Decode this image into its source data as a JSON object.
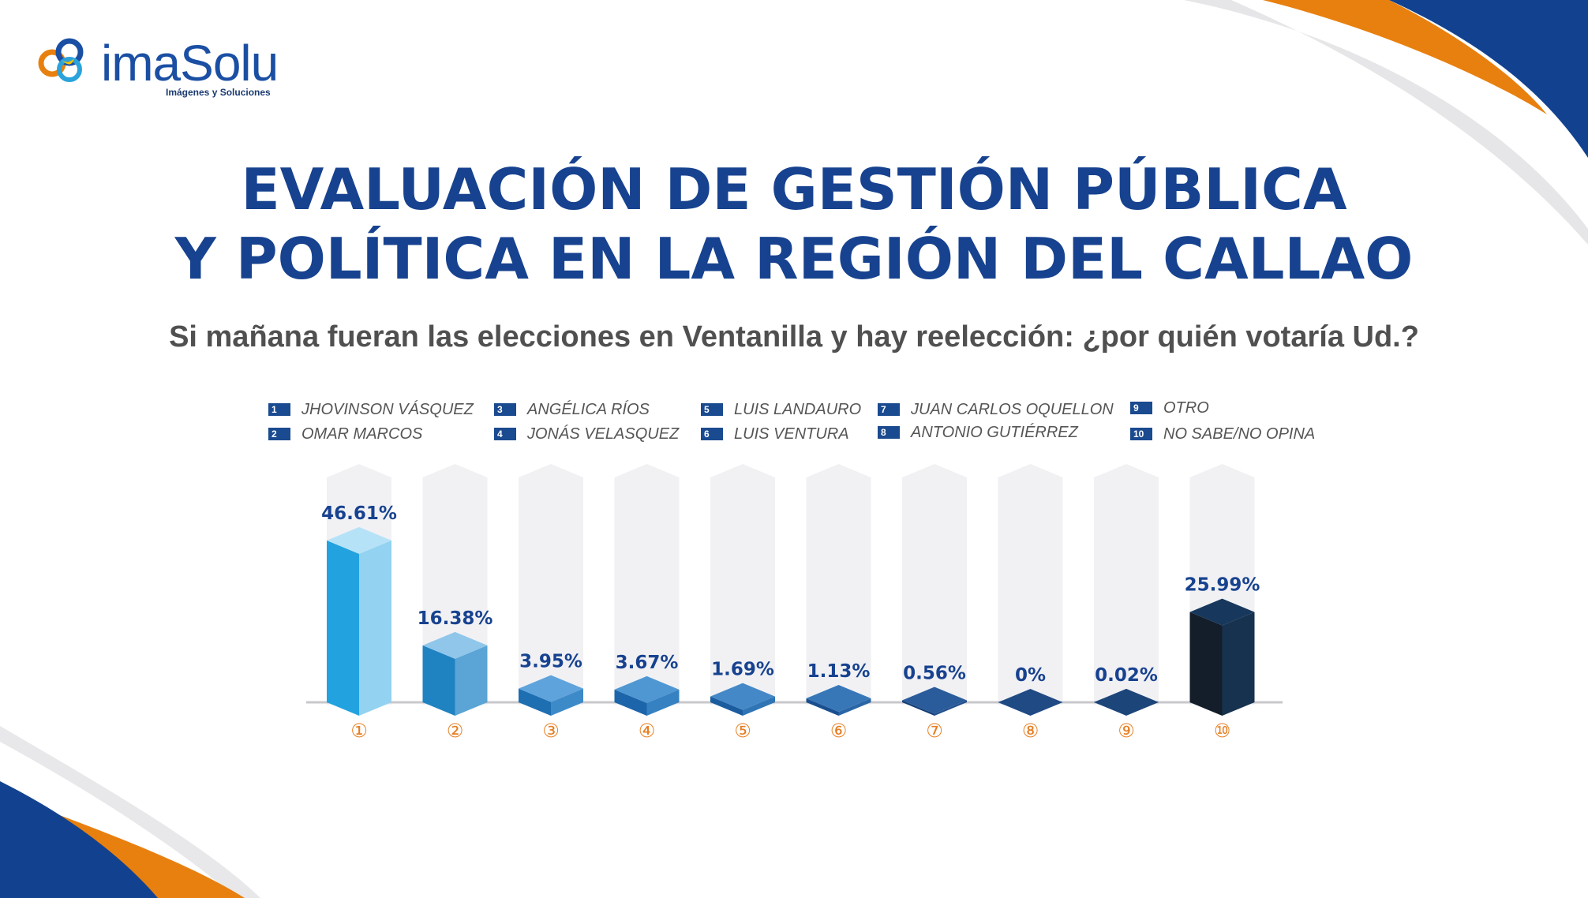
{
  "brand": {
    "name": "imaSolu",
    "tagline": "Imágenes y Soluciones",
    "logo_icon": "imasolu-logo-icon"
  },
  "title_line1": "EVALUACIÓN DE GESTIÓN PÚBLICA",
  "title_line2": "Y POLÍTICA EN LA REGIÓN DEL CALLAO",
  "subtitle": "Si mañana fueran las elecciones en Ventanilla y hay reelección: ¿por quién votaría Ud.?",
  "colors": {
    "title": "#17428f",
    "subtitle": "#505050",
    "accent_orange": "#e8800f",
    "accent_blue": "#12428f",
    "value_label": "#17428f",
    "number_circle": "#e67e22"
  },
  "legend": [
    {
      "num": "1",
      "label": "JHOVINSON VÁSQUEZ"
    },
    {
      "num": "2",
      "label": "OMAR MARCOS"
    },
    {
      "num": "3",
      "label": "ANGÉLICA RÍOS"
    },
    {
      "num": "4",
      "label": "JONÁS VELASQUEZ"
    },
    {
      "num": "5",
      "label": "LUIS LANDAURO"
    },
    {
      "num": "6",
      "label": "LUIS VENTURA"
    },
    {
      "num": "7",
      "label": "JUAN CARLOS OQUELLON"
    },
    {
      "num": "8",
      "label": "ANTONIO GUTIÉRREZ"
    },
    {
      "num": "9",
      "label": "OTRO"
    },
    {
      "num": "10",
      "label": "NO SABE/NO OPINA"
    }
  ],
  "chart_data": {
    "type": "bar",
    "categories": [
      "1",
      "2",
      "3",
      "4",
      "5",
      "6",
      "7",
      "8",
      "9",
      "10"
    ],
    "category_markers": [
      "①",
      "②",
      "③",
      "④",
      "⑤",
      "⑥",
      "⑦",
      "⑧",
      "⑨",
      "⑩"
    ],
    "values": [
      46.61,
      16.38,
      3.95,
      3.67,
      1.69,
      1.13,
      0.56,
      0,
      0.02,
      25.99
    ],
    "value_labels": [
      "46.61%",
      "16.38%",
      "3.95%",
      "3.67%",
      "1.69%",
      "1.13%",
      "0.56%",
      "0%",
      "0.02%",
      "25.99%"
    ],
    "bar_colors": [
      {
        "front": "#22a3e0",
        "side": "#93d2f1",
        "top": "#b6e2f7"
      },
      {
        "front": "#1f82c1",
        "side": "#5aa4d6",
        "top": "#8fc6ea"
      },
      {
        "front": "#1e6eb2",
        "side": "#3d8ac8",
        "top": "#5fa3dc"
      },
      {
        "front": "#1d65aa",
        "side": "#3581c2",
        "top": "#4f97d3"
      },
      {
        "front": "#1b5c9f",
        "side": "#2f75b6",
        "top": "#4488c8"
      },
      {
        "front": "#194f8e",
        "side": "#2a66a6",
        "top": "#3777b8"
      },
      {
        "front": "#163f77",
        "side": "#234f8c",
        "top": "#2a5c9c"
      },
      {
        "front": "#153868",
        "side": "#1c4478",
        "top": "#1f4a84"
      },
      {
        "front": "#14355f",
        "side": "#1a4070",
        "top": "#1c457a"
      },
      {
        "front": "#131e2a",
        "side": "#17324f",
        "top": "#17385c"
      }
    ],
    "background_column_color": "#f1f1f4",
    "ylim": [
      0,
      50
    ],
    "grid": false,
    "legend_position": "top"
  }
}
